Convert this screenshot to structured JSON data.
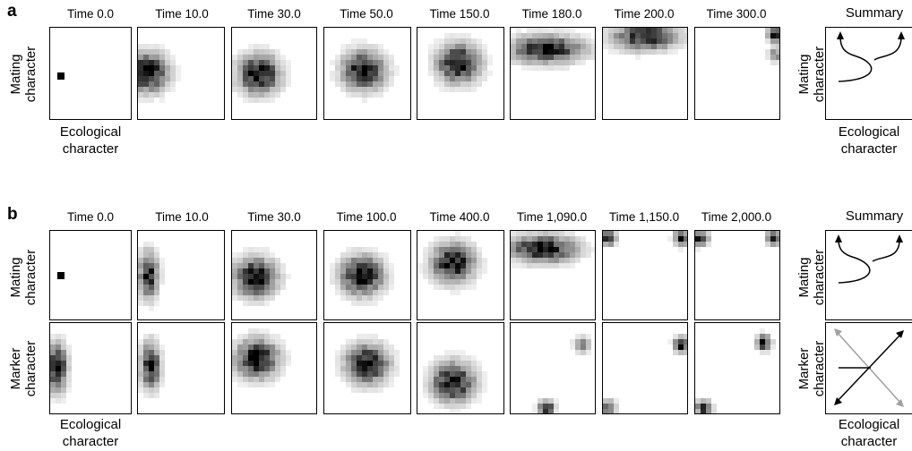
{
  "panels": [
    {
      "letter": "a",
      "times": [
        "Time 0.0",
        "Time 10.0",
        "Time 30.0",
        "Time 50.0",
        "Time 150.0",
        "Time 180.0",
        "Time 200.0",
        "Time 300.0"
      ],
      "summary_title": "Summary",
      "rows": [
        {
          "ylabel": [
            "Mating",
            "character"
          ]
        }
      ],
      "xlabel": [
        "Ecological",
        "character"
      ]
    },
    {
      "letter": "b",
      "times": [
        "Time 0.0",
        "Time 10.0",
        "Time 30.0",
        "Time 100.0",
        "Time 400.0",
        "Time 1,090.0",
        "Time 1,150.0",
        "Time 2,000.0"
      ],
      "summary_title": "Summary",
      "rows": [
        {
          "ylabel": [
            "Mating",
            "character"
          ]
        },
        {
          "ylabel": [
            "Marker",
            "character"
          ]
        }
      ],
      "xlabel": [
        "Ecological",
        "character"
      ]
    }
  ],
  "colors": {
    "density_max": "#000000",
    "density_min": "#ffffff",
    "summary_gray": "#a0a0a0",
    "axis": "#000000"
  }
}
